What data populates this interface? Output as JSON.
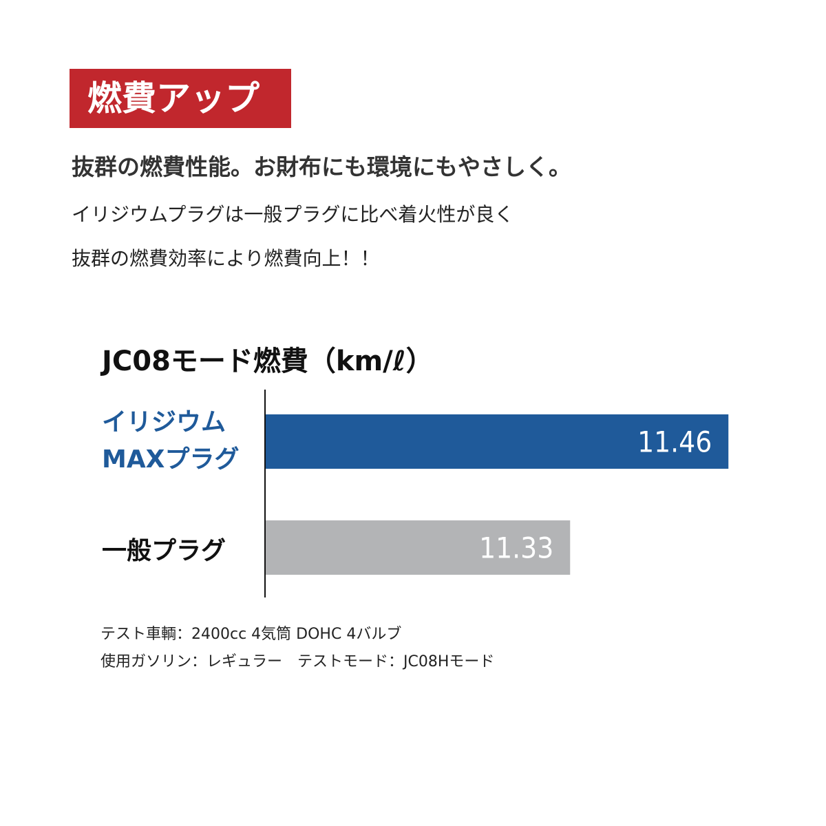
{
  "badge": "燃費アップ",
  "subtitle": "抜群の燃費性能。お財布にも環境にもやさしく。",
  "body_lines": [
    "イリジウムプラグは一般プラグに比べ着火性が良く",
    "抜群の燃費効率により燃費向上！！"
  ],
  "colors": {
    "badge": "#c1272d",
    "iridium": "#1f5a9a",
    "standard": "#b3b4b6"
  },
  "chart_data": {
    "type": "bar",
    "orientation": "horizontal",
    "title": "JC08モード燃費（km/ℓ）",
    "categories": [
      "イリジウムMAXプラグ",
      "一般プラグ"
    ],
    "category_lines": [
      [
        "イリジウム",
        "MAXプラグ"
      ],
      [
        "一般プラグ"
      ]
    ],
    "values": [
      11.46,
      11.33
    ],
    "value_labels": [
      "11.46",
      "11.33"
    ],
    "bar_colors": [
      "#1f5a9a",
      "#b3b4b6"
    ],
    "label_colors": [
      "#1f5a9a",
      "#111111"
    ],
    "xlim": [
      11.08,
      11.5
    ],
    "grid": false
  },
  "footnotes": [
    "テスト車輌：2400cc 4気筒 DOHC 4バルブ",
    "使用ガソリン：レギュラー　テストモード：JC08Hモード"
  ]
}
